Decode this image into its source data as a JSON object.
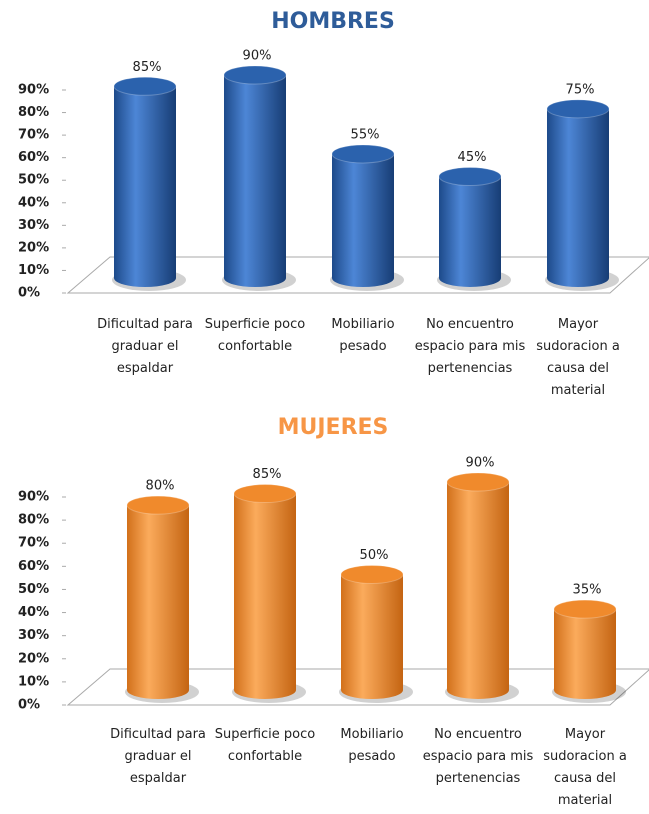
{
  "chart_data": [
    {
      "type": "bar",
      "title": "HOMBRES",
      "title_color": "#2e5c99",
      "categories": [
        "Dificultad para graduar el espaldar",
        "Superficie poco confortable",
        "Mobiliario pesado",
        "No encuentro espacio para mis pertenencias",
        "Mayor sudoracion a causa del material"
      ],
      "values": [
        85,
        90,
        55,
        45,
        75
      ],
      "value_labels": [
        "85%",
        "90%",
        "55%",
        "45%",
        "75%"
      ],
      "color": "#2b62ad",
      "ylim": [
        0,
        90
      ],
      "yticks": [
        {
          "value": 0,
          "label": "0%"
        },
        {
          "value": 10,
          "label": "10%"
        },
        {
          "value": 20,
          "label": "20%"
        },
        {
          "value": 30,
          "label": "30%"
        },
        {
          "value": 40,
          "label": "40%"
        },
        {
          "value": 50,
          "label": "50%"
        },
        {
          "value": 60,
          "label": "60%"
        },
        {
          "value": 70,
          "label": "70%"
        },
        {
          "value": 80,
          "label": "80%"
        },
        {
          "value": 90,
          "label": "90%"
        }
      ]
    },
    {
      "type": "bar",
      "title": "MUJERES",
      "title_color": "#f79646",
      "categories": [
        "Dificultad para graduar el espaldar",
        "Superficie poco confortable",
        "Mobiliario pesado",
        "No encuentro espacio para mis pertenencias",
        "Mayor sudoracion a causa del material"
      ],
      "values": [
        80,
        85,
        50,
        90,
        35
      ],
      "value_labels": [
        "80%",
        "85%",
        "50%",
        "90%",
        "35%"
      ],
      "color": "#f08a2c",
      "ylim": [
        0,
        90
      ],
      "yticks": [
        {
          "value": 0,
          "label": "0%"
        },
        {
          "value": 10,
          "label": "10%"
        },
        {
          "value": 20,
          "label": "20%"
        },
        {
          "value": 30,
          "label": "30%"
        },
        {
          "value": 40,
          "label": "40%"
        },
        {
          "value": 50,
          "label": "50%"
        },
        {
          "value": 60,
          "label": "60%"
        },
        {
          "value": 70,
          "label": "70%"
        },
        {
          "value": 80,
          "label": "80%"
        },
        {
          "value": 90,
          "label": "90%"
        }
      ]
    }
  ]
}
